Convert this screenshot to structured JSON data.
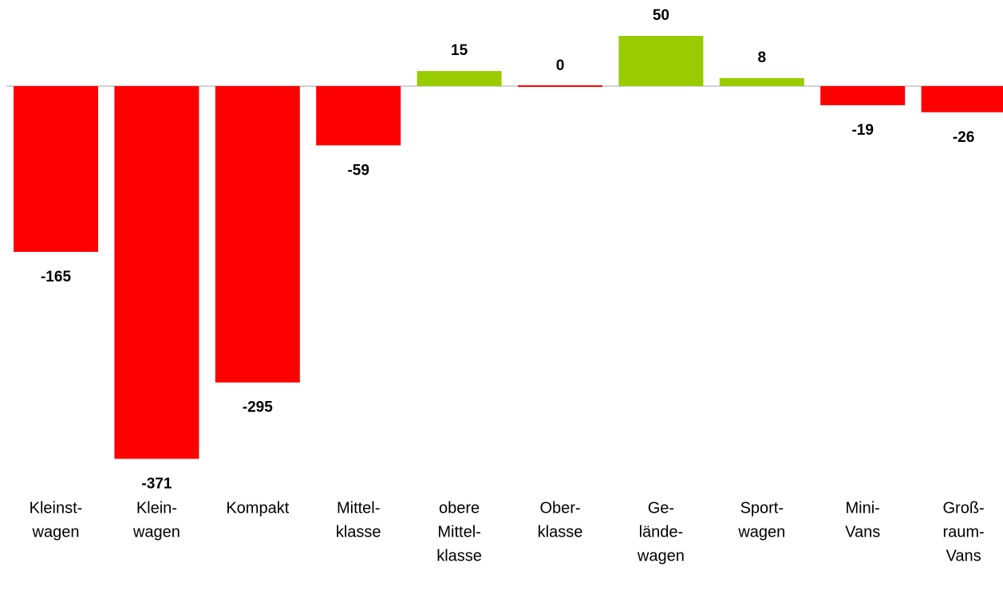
{
  "chart_data": {
    "type": "bar",
    "categories": [
      [
        "Kleinst-",
        "wagen"
      ],
      [
        "Klein-",
        "wagen"
      ],
      [
        "Kompakt"
      ],
      [
        "Mittel-",
        "klasse"
      ],
      [
        "obere",
        "Mittel-",
        "klasse"
      ],
      [
        "Ober-",
        "klasse"
      ],
      [
        "Ge-",
        "lände-",
        "wagen"
      ],
      [
        "Sport-",
        "wagen"
      ],
      [
        "Mini-",
        "Vans"
      ],
      [
        "Groß-",
        "raum-",
        "Vans"
      ]
    ],
    "values": [
      -165,
      -371,
      -295,
      -59,
      15,
      0,
      50,
      8,
      -19,
      -26
    ],
    "colors": [
      "#ff0000",
      "#ff0000",
      "#ff0000",
      "#ff0000",
      "#99cc00",
      "#ff0000",
      "#99cc00",
      "#99cc00",
      "#ff0000",
      "#ff0000"
    ]
  }
}
